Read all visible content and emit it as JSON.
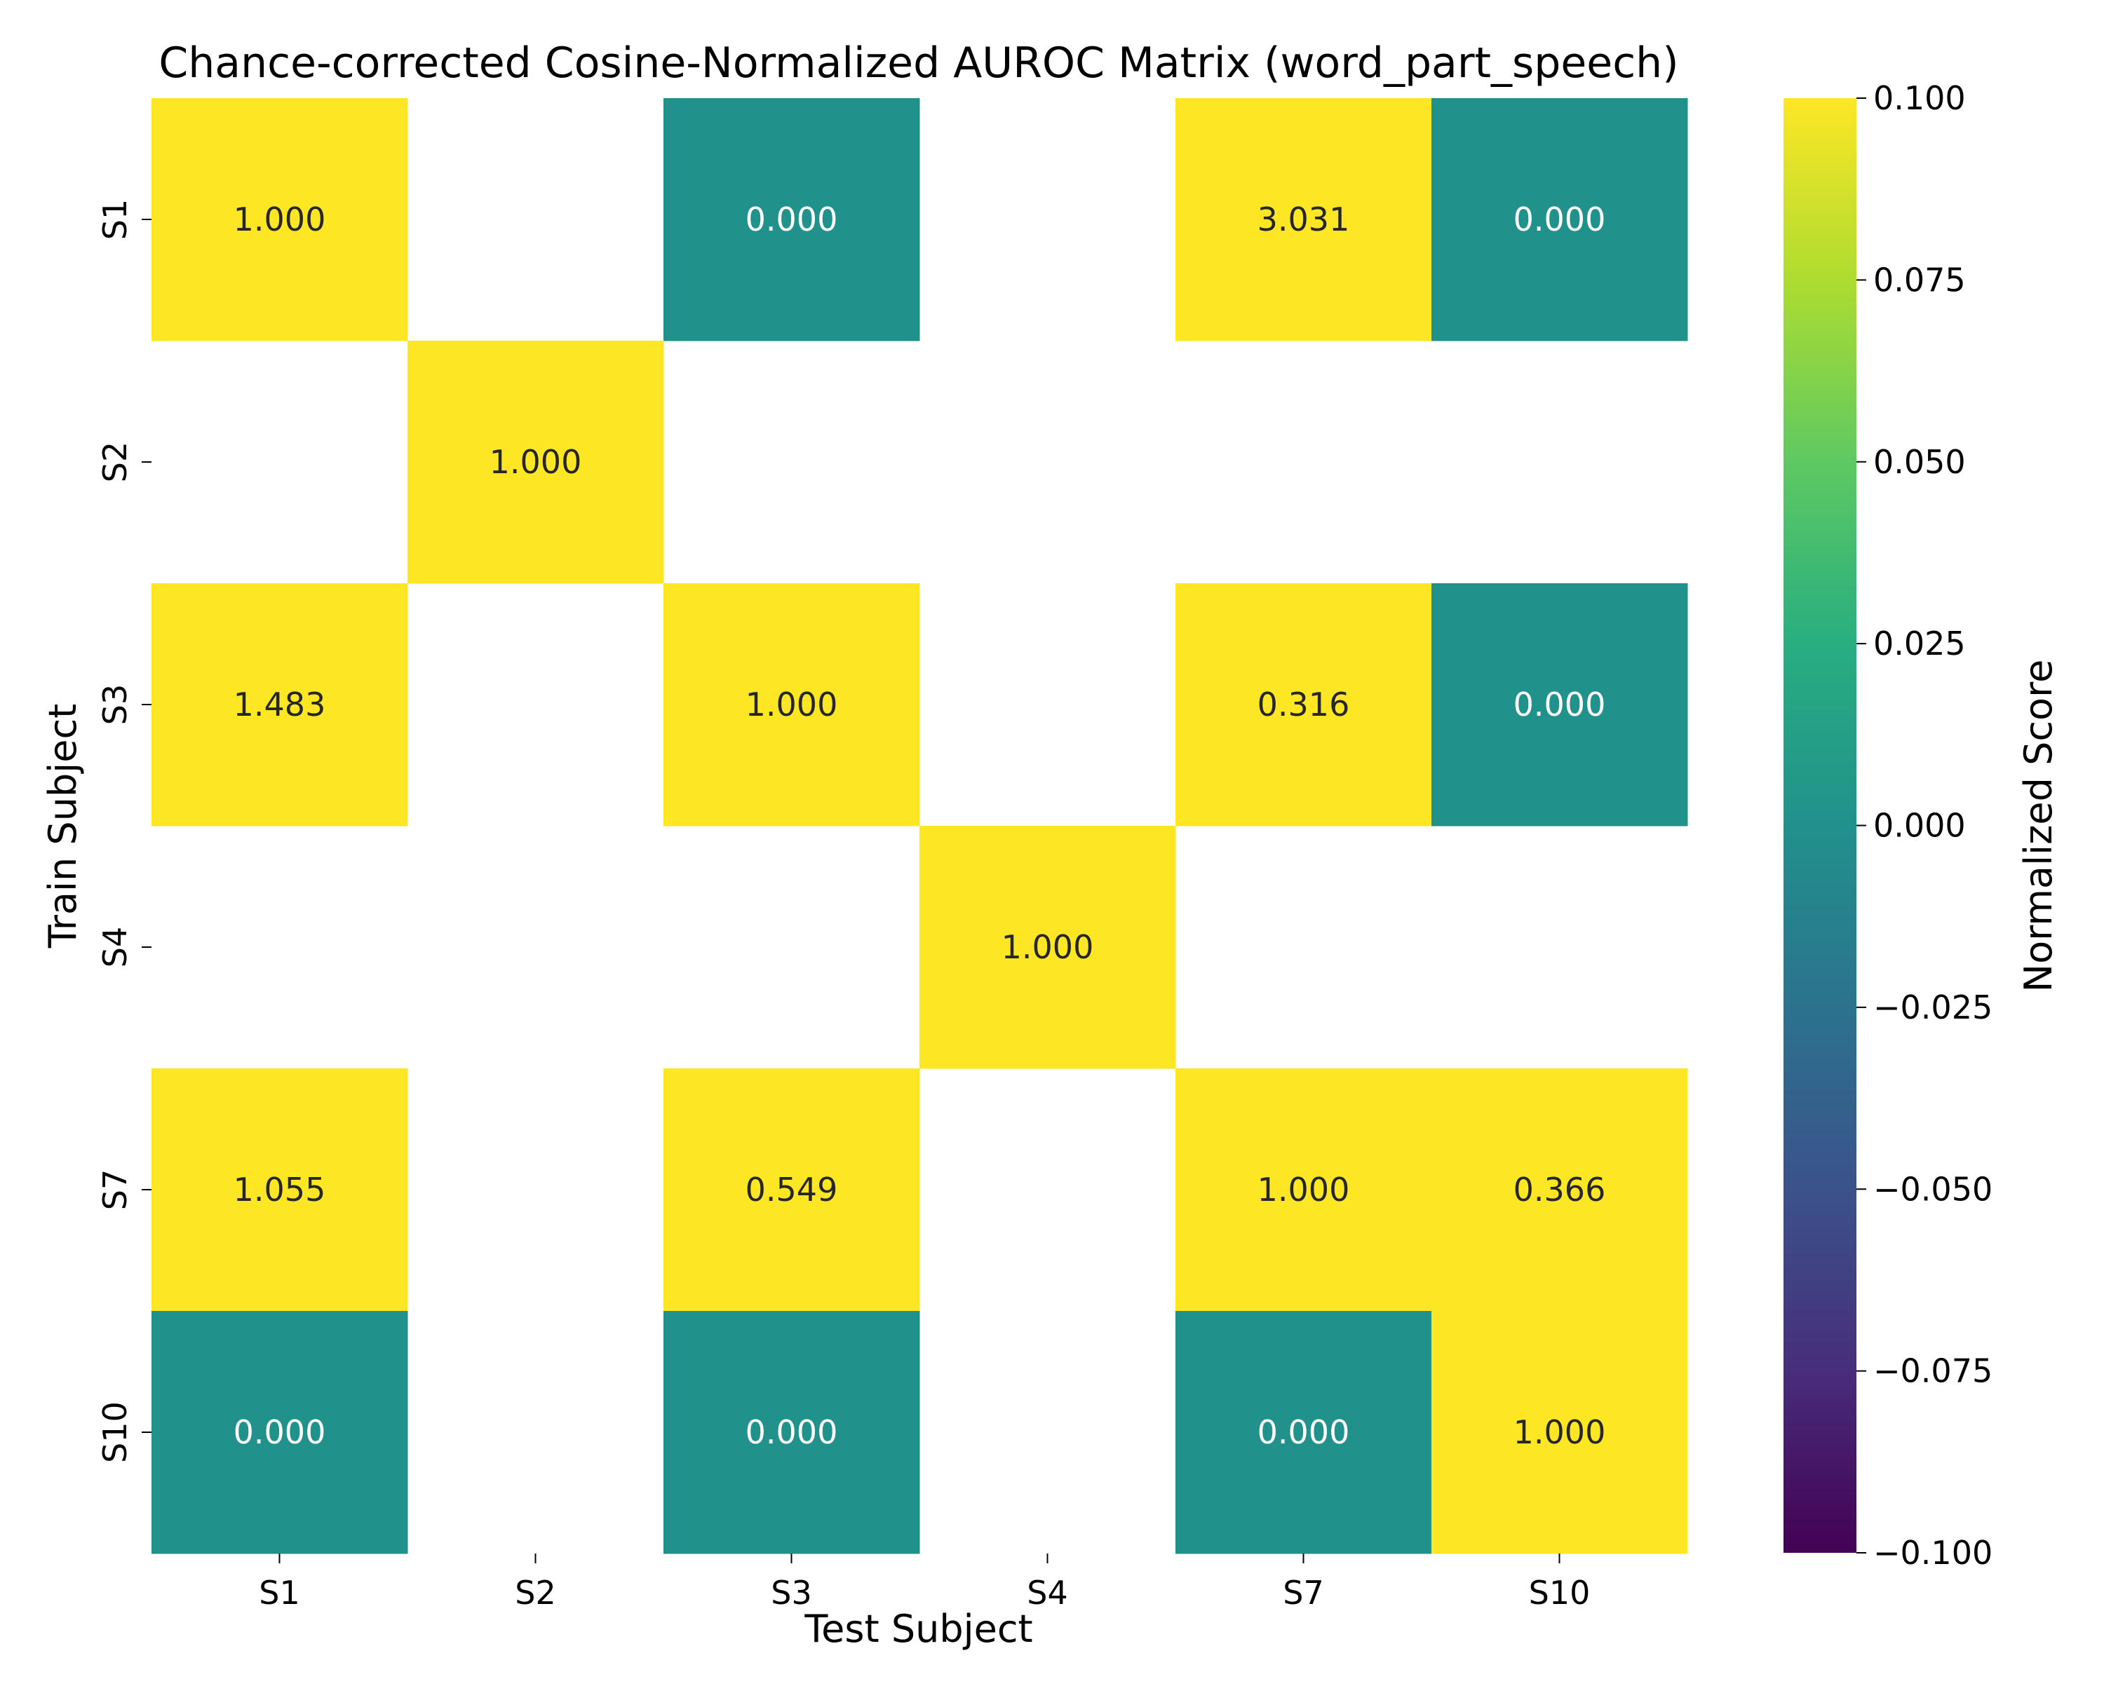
{
  "chart_data": {
    "type": "heatmap",
    "title": "Chance-corrected Cosine-Normalized AUROC Matrix (word_part_speech)",
    "xlabel": "Test Subject",
    "ylabel": "Train Subject",
    "x_categories": [
      "S1",
      "S2",
      "S3",
      "S4",
      "S7",
      "S10"
    ],
    "y_categories": [
      "S1",
      "S2",
      "S3",
      "S4",
      "S7",
      "S10"
    ],
    "values": [
      [
        1.0,
        null,
        0.0,
        null,
        3.031,
        0.0
      ],
      [
        null,
        1.0,
        null,
        null,
        null,
        null
      ],
      [
        1.483,
        null,
        1.0,
        null,
        0.316,
        0.0
      ],
      [
        null,
        null,
        null,
        1.0,
        null,
        null
      ],
      [
        1.055,
        null,
        0.549,
        null,
        1.0,
        0.366
      ],
      [
        0.0,
        null,
        0.0,
        null,
        0.0,
        1.0
      ]
    ],
    "labels": [
      [
        "1.000",
        "",
        "0.000",
        "",
        "3.031",
        "0.000"
      ],
      [
        "",
        "1.000",
        "",
        "",
        "",
        ""
      ],
      [
        "1.483",
        "",
        "1.000",
        "",
        "0.316",
        "0.000"
      ],
      [
        "",
        "",
        "",
        "1.000",
        "",
        ""
      ],
      [
        "1.055",
        "",
        "0.549",
        "",
        "1.000",
        "0.366"
      ],
      [
        "0.000",
        "",
        "0.000",
        "",
        "0.000",
        "1.000"
      ]
    ],
    "colorbar": {
      "label": "Normalized Score",
      "vmin": -0.1,
      "vmax": 0.1,
      "colormap": "viridis",
      "ticks": [
        0.1,
        0.075,
        0.05,
        0.025,
        0.0,
        -0.025,
        -0.05,
        -0.075,
        -0.1
      ],
      "tick_labels": [
        "0.100",
        "0.075",
        "0.050",
        "0.025",
        "0.000",
        "−0.025",
        "−0.050",
        "−0.075",
        "−0.100"
      ]
    },
    "grid": false
  }
}
